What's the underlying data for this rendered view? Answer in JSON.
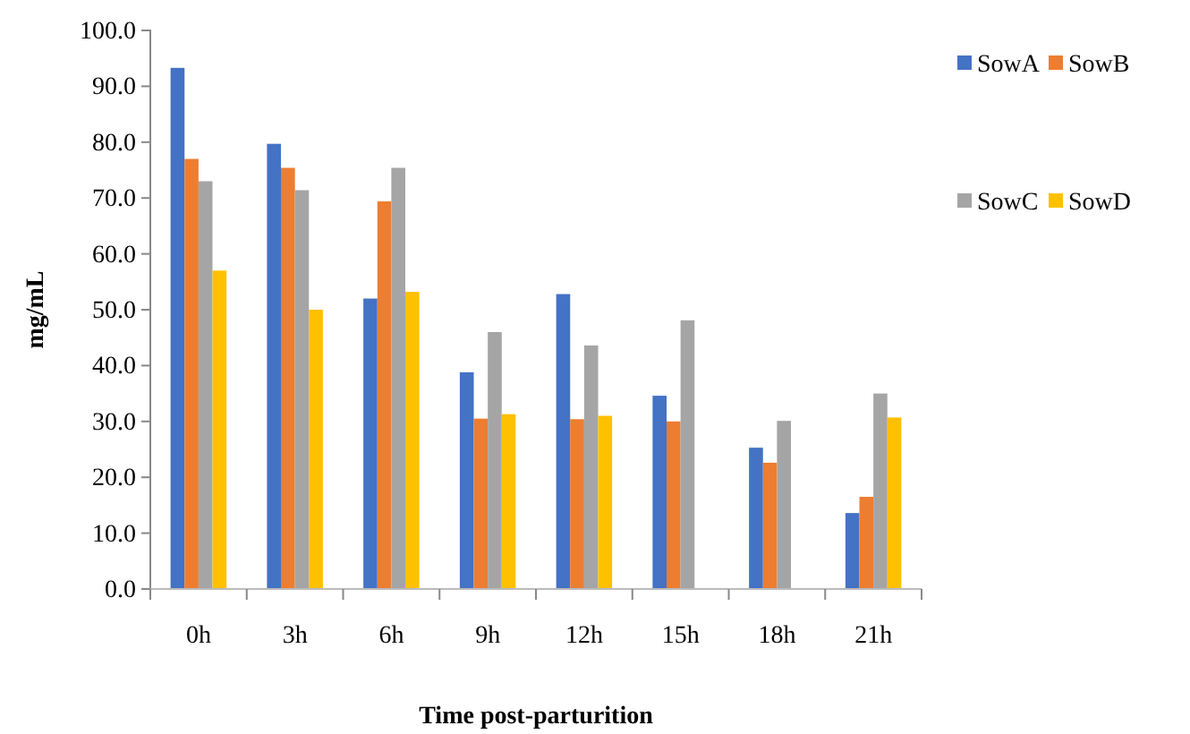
{
  "chart_data": {
    "type": "bar",
    "xlabel": "Time post-parturition",
    "ylabel": "mg/mL",
    "categories": [
      "0h",
      "3h",
      "6h",
      "9h",
      "12h",
      "15h",
      "18h",
      "21h"
    ],
    "series": [
      {
        "name": "SowA",
        "color": "#4472c4",
        "values": [
          93.3,
          79.7,
          52.0,
          38.8,
          52.8,
          34.6,
          25.3,
          13.6
        ]
      },
      {
        "name": "SowB",
        "color": "#ed7d31",
        "values": [
          77.0,
          75.4,
          69.4,
          30.5,
          30.4,
          30.0,
          22.6,
          16.5
        ]
      },
      {
        "name": "SowC",
        "color": "#a5a5a5",
        "values": [
          73.0,
          71.4,
          75.4,
          46.0,
          43.6,
          48.1,
          30.1,
          35.0
        ]
      },
      {
        "name": "SowD",
        "color": "#ffc000",
        "values": [
          57.0,
          50.0,
          53.2,
          31.3,
          31.0,
          null,
          null,
          30.7
        ]
      }
    ],
    "ylim": [
      0,
      100
    ],
    "yticks": [
      {
        "value": 0,
        "label": "0.0"
      },
      {
        "value": 10,
        "label": "10.0"
      },
      {
        "value": 20,
        "label": "20.0"
      },
      {
        "value": 30,
        "label": "30.0"
      },
      {
        "value": 40,
        "label": "40.0"
      },
      {
        "value": 50,
        "label": "50.0"
      },
      {
        "value": 60,
        "label": "60.0"
      },
      {
        "value": 70,
        "label": "70.0"
      },
      {
        "value": 80,
        "label": "80.0"
      },
      {
        "value": 90,
        "label": "90.0"
      },
      {
        "value": 100,
        "label": "100.0"
      }
    ],
    "legend": "right"
  }
}
